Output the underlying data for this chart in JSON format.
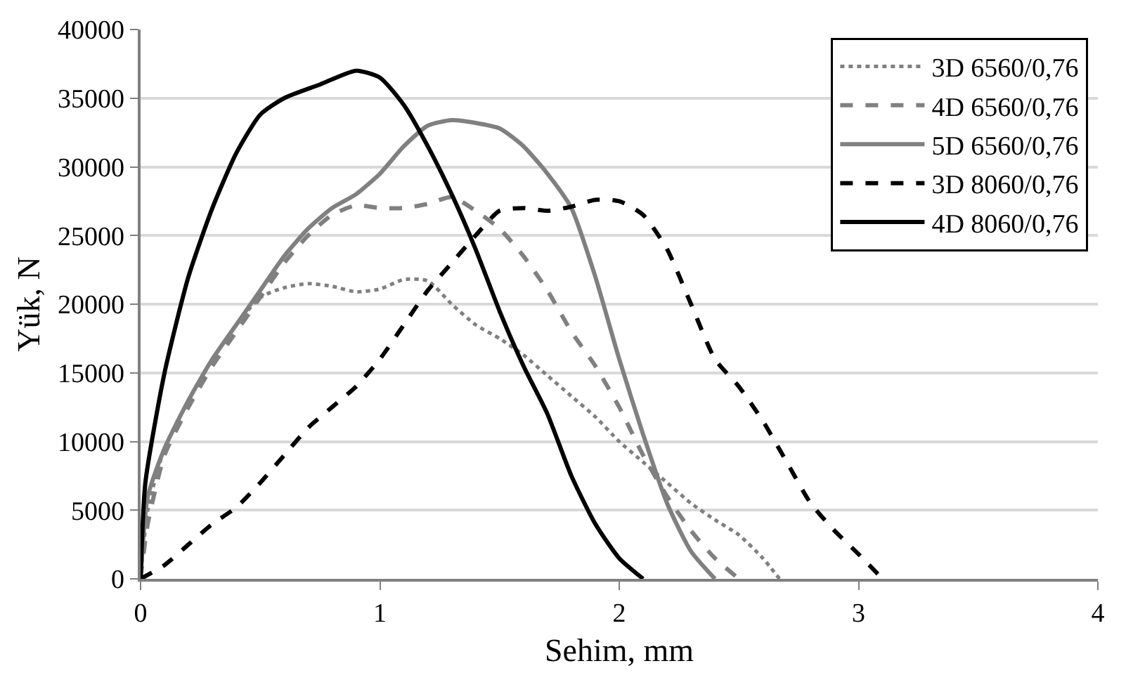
{
  "chart_data": {
    "type": "line",
    "xlabel": "Sehim, mm",
    "ylabel": "Yük, N",
    "xlim": [
      0,
      4
    ],
    "xticks": [
      0,
      1,
      2,
      3,
      4
    ],
    "ylim": [
      0,
      40000
    ],
    "yticks": [
      0,
      5000,
      10000,
      15000,
      20000,
      25000,
      30000,
      35000,
      40000
    ],
    "grid": "y",
    "legend": "top right",
    "marker": "none",
    "series": [
      {
        "name": "3D 6560/0,76",
        "color": "#808080",
        "line_style": "dotted",
        "x": [
          0,
          0.03,
          0.1,
          0.2,
          0.3,
          0.4,
          0.5,
          0.6,
          0.7,
          0.8,
          0.9,
          1.0,
          1.1,
          1.2,
          1.3,
          1.4,
          1.5,
          1.6,
          1.7,
          1.8,
          1.9,
          2.0,
          2.1,
          2.2,
          2.3,
          2.4,
          2.5,
          2.6,
          2.67
        ],
        "values": [
          0,
          5000,
          9500,
          13000,
          16000,
          18500,
          20500,
          21200,
          21500,
          21300,
          20900,
          21100,
          21800,
          21700,
          20000,
          18500,
          17500,
          16300,
          14800,
          13300,
          11800,
          10000,
          8500,
          7000,
          5500,
          4300,
          3200,
          1500,
          0
        ]
      },
      {
        "name": "4D 6560/0,76",
        "color": "#808080",
        "line_style": "dashed",
        "x": [
          0,
          0.03,
          0.1,
          0.2,
          0.3,
          0.4,
          0.5,
          0.6,
          0.7,
          0.8,
          0.9,
          1.0,
          1.1,
          1.2,
          1.3,
          1.4,
          1.5,
          1.6,
          1.7,
          1.8,
          1.9,
          2.0,
          2.1,
          2.2,
          2.3,
          2.4,
          2.5
        ],
        "values": [
          0,
          4000,
          9000,
          12500,
          15500,
          18000,
          20500,
          23000,
          25000,
          26500,
          27200,
          27000,
          27000,
          27300,
          27800,
          26800,
          25500,
          23500,
          21000,
          18000,
          15500,
          12500,
          9000,
          6000,
          3500,
          1500,
          0
        ]
      },
      {
        "name": "5D 6560/0,76",
        "color": "#808080",
        "line_style": "solid",
        "x": [
          0,
          0.03,
          0.1,
          0.2,
          0.3,
          0.4,
          0.5,
          0.6,
          0.7,
          0.8,
          0.9,
          1.0,
          1.1,
          1.2,
          1.3,
          1.4,
          1.5,
          1.6,
          1.7,
          1.8,
          1.9,
          2.0,
          2.1,
          2.2,
          2.3,
          2.4
        ],
        "values": [
          0,
          6000,
          9500,
          13000,
          16000,
          18500,
          21000,
          23500,
          25500,
          27000,
          28000,
          29500,
          31500,
          33000,
          33400,
          33200,
          32800,
          31500,
          29500,
          27000,
          22000,
          16000,
          10500,
          5500,
          2000,
          0
        ]
      },
      {
        "name": "3D 8060/0,76",
        "color": "#000000",
        "line_style": "dashed",
        "x": [
          0,
          0.1,
          0.2,
          0.3,
          0.4,
          0.5,
          0.6,
          0.7,
          0.8,
          0.9,
          1.0,
          1.1,
          1.2,
          1.3,
          1.4,
          1.5,
          1.6,
          1.7,
          1.8,
          1.9,
          2.0,
          2.1,
          2.2,
          2.3,
          2.4,
          2.5,
          2.6,
          2.7,
          2.8,
          2.9,
          3.0,
          3.1
        ],
        "values": [
          0,
          1000,
          2500,
          4000,
          5200,
          7000,
          9000,
          11000,
          12500,
          14000,
          16000,
          18500,
          21000,
          23000,
          25000,
          26800,
          27000,
          26800,
          27100,
          27600,
          27500,
          26500,
          24000,
          20000,
          16000,
          14000,
          11500,
          8500,
          5500,
          3500,
          1800,
          0
        ]
      },
      {
        "name": "4D 8060/0,76",
        "color": "#000000",
        "line_style": "solid",
        "x": [
          0,
          0.02,
          0.1,
          0.2,
          0.3,
          0.4,
          0.5,
          0.6,
          0.75,
          0.9,
          1.0,
          1.1,
          1.2,
          1.3,
          1.4,
          1.5,
          1.6,
          1.7,
          1.8,
          1.9,
          2.0,
          2.1
        ],
        "values": [
          0,
          7000,
          15000,
          22000,
          27000,
          31000,
          33800,
          35000,
          36000,
          37000,
          36500,
          34500,
          31500,
          28000,
          24000,
          19500,
          15500,
          12000,
          7500,
          4000,
          1500,
          0
        ]
      }
    ]
  }
}
